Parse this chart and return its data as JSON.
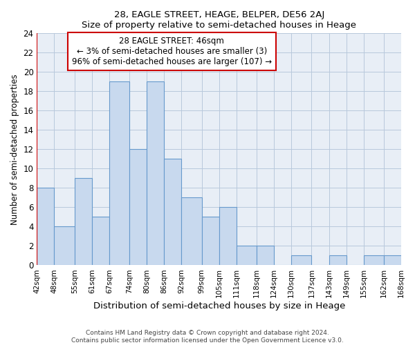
{
  "title1": "28, EAGLE STREET, HEAGE, BELPER, DE56 2AJ",
  "title2": "Size of property relative to semi-detached houses in Heage",
  "xlabel": "Distribution of semi-detached houses by size in Heage",
  "ylabel": "Number of semi-detached properties",
  "bin_edges": [
    42,
    48,
    55,
    61,
    67,
    74,
    80,
    86,
    92,
    99,
    105,
    111,
    118,
    124,
    130,
    137,
    143,
    149,
    155,
    162,
    168
  ],
  "bin_labels": [
    "42sqm",
    "48sqm",
    "55sqm",
    "61sqm",
    "67sqm",
    "74sqm",
    "80sqm",
    "86sqm",
    "92sqm",
    "99sqm",
    "105sqm",
    "111sqm",
    "118sqm",
    "124sqm",
    "130sqm",
    "137sqm",
    "143sqm",
    "149sqm",
    "155sqm",
    "162sqm",
    "168sqm"
  ],
  "counts": [
    8,
    4,
    9,
    5,
    19,
    12,
    19,
    11,
    7,
    5,
    6,
    2,
    2,
    0,
    1,
    0,
    1,
    0,
    1,
    1
  ],
  "bar_facecolor": "#c8d9ee",
  "bar_edgecolor": "#6699cc",
  "highlight_edge_color": "#cc0000",
  "annotation_box_edge": "#cc0000",
  "annotation_text_line1": "28 EAGLE STREET: 46sqm",
  "annotation_text_line2": "← 3% of semi-detached houses are smaller (3)",
  "annotation_text_line3": "96% of semi-detached houses are larger (107) →",
  "grid_color": "#b8c8dc",
  "background_color": "#e8eef6",
  "ylim": [
    0,
    24
  ],
  "yticks": [
    0,
    2,
    4,
    6,
    8,
    10,
    12,
    14,
    16,
    18,
    20,
    22,
    24
  ],
  "footer_line1": "Contains HM Land Registry data © Crown copyright and database right 2024.",
  "footer_line2": "Contains public sector information licensed under the Open Government Licence v3.0."
}
